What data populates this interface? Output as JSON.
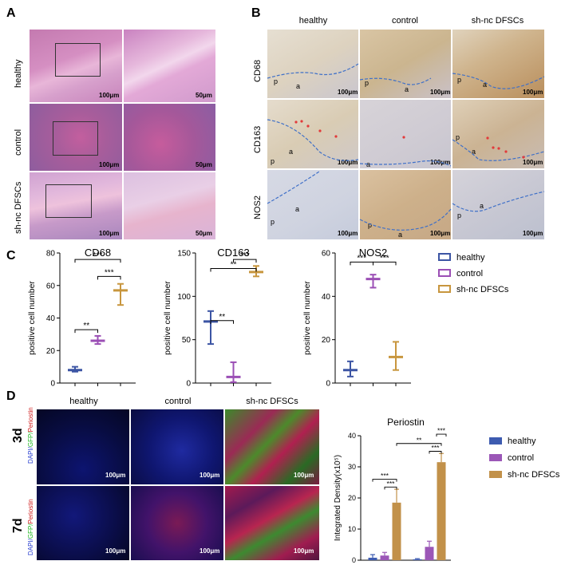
{
  "panels": {
    "a": "A",
    "b": "B",
    "c": "C",
    "d": "D"
  },
  "A": {
    "rows": [
      "healthy",
      "control",
      "sh-nc DFSCs"
    ],
    "scale_left": "100μm",
    "scale_right": "50μm"
  },
  "B": {
    "cols": [
      "healthy",
      "control",
      "sh-nc DFSCs"
    ],
    "rows": [
      "CD68",
      "CD163",
      "NOS2"
    ],
    "scale": "100μm",
    "labels": {
      "p": "p",
      "a": "a"
    }
  },
  "C": {
    "ylabel": "positive cell number",
    "legend": [
      "healthy",
      "control",
      "sh-nc DFSCs"
    ],
    "colors": {
      "healthy": "#3c55a4",
      "control": "#9b4fb5",
      "sh-nc DFSCs": "#c8963e"
    }
  },
  "D": {
    "cols": [
      "healthy",
      "control",
      "sh-nc DFSCs"
    ],
    "rows": [
      "3d",
      "7d"
    ],
    "stain_label": [
      "DAPI/",
      "GFP/",
      "Periostin"
    ],
    "scale": "100μm",
    "legend": [
      "healthy",
      "control",
      "sh-nc DFSCs"
    ],
    "colors": {
      "healthy": "#3d5bb0",
      "control": "#9b57b7",
      "sh-nc DFSCs": "#c2914a"
    }
  },
  "chart_data": [
    {
      "type": "scatter",
      "title": "CD68",
      "ylabel": "positive cell number",
      "ylim": [
        0,
        80
      ],
      "yticks": [
        "0",
        "20",
        "40",
        "60",
        "80"
      ],
      "series": [
        {
          "name": "healthy",
          "mean": 8,
          "low": 7,
          "high": 10
        },
        {
          "name": "control",
          "mean": 26,
          "low": 24,
          "high": 29
        },
        {
          "name": "sh-nc DFSCs",
          "mean": 57,
          "low": 48,
          "high": 61
        }
      ],
      "significance": [
        {
          "from": 0,
          "to": 1,
          "label": "**"
        },
        {
          "from": 1,
          "to": 2,
          "label": "***"
        },
        {
          "from": 0,
          "to": 2,
          "label": "***"
        }
      ]
    },
    {
      "type": "scatter",
      "title": "CD163",
      "ylabel": "positive cell number",
      "ylim": [
        0,
        150
      ],
      "yticks": [
        "0",
        "50",
        "100",
        "150"
      ],
      "series": [
        {
          "name": "healthy",
          "mean": 71,
          "low": 45,
          "high": 83
        },
        {
          "name": "control",
          "mean": 7,
          "low": 1,
          "high": 24
        },
        {
          "name": "sh-nc DFSCs",
          "mean": 128,
          "low": 123,
          "high": 135
        }
      ],
      "significance": [
        {
          "from": 0,
          "to": 1,
          "label": "**"
        },
        {
          "from": 1,
          "to": 2,
          "label": "***"
        },
        {
          "from": 0,
          "to": 2,
          "label": "**"
        }
      ]
    },
    {
      "type": "scatter",
      "title": "NOS2",
      "ylabel": "positive cell number",
      "ylim": [
        0,
        60
      ],
      "yticks": [
        "0",
        "20",
        "40",
        "60"
      ],
      "series": [
        {
          "name": "healthy",
          "mean": 6,
          "low": 3,
          "high": 10
        },
        {
          "name": "control",
          "mean": 48,
          "low": 44,
          "high": 50
        },
        {
          "name": "sh-nc DFSCs",
          "mean": 12,
          "low": 6,
          "high": 19
        }
      ],
      "significance": [
        {
          "from": 0,
          "to": 1,
          "label": "***"
        },
        {
          "from": 1,
          "to": 2,
          "label": "***"
        }
      ]
    },
    {
      "type": "bar",
      "title": "Periostin",
      "ylabel": "Integrated Density(x10⁵)",
      "ylim": [
        0,
        40
      ],
      "yticks": [
        "0",
        "10",
        "20",
        "30",
        "40"
      ],
      "categories": [
        "3d",
        "7d"
      ],
      "series": [
        {
          "name": "healthy",
          "values": [
            0.8,
            0.3
          ],
          "errors": [
            1.0,
            0.2
          ]
        },
        {
          "name": "control",
          "values": [
            1.5,
            4.3
          ],
          "errors": [
            1.0,
            1.8
          ]
        },
        {
          "name": "sh-nc DFSCs",
          "values": [
            18.5,
            31.5
          ],
          "errors": [
            4.3,
            2.8
          ]
        }
      ],
      "significance": [
        {
          "label": "***"
        },
        {
          "label": "***"
        },
        {
          "label": "**"
        },
        {
          "label": "***"
        },
        {
          "label": "***"
        }
      ]
    }
  ]
}
